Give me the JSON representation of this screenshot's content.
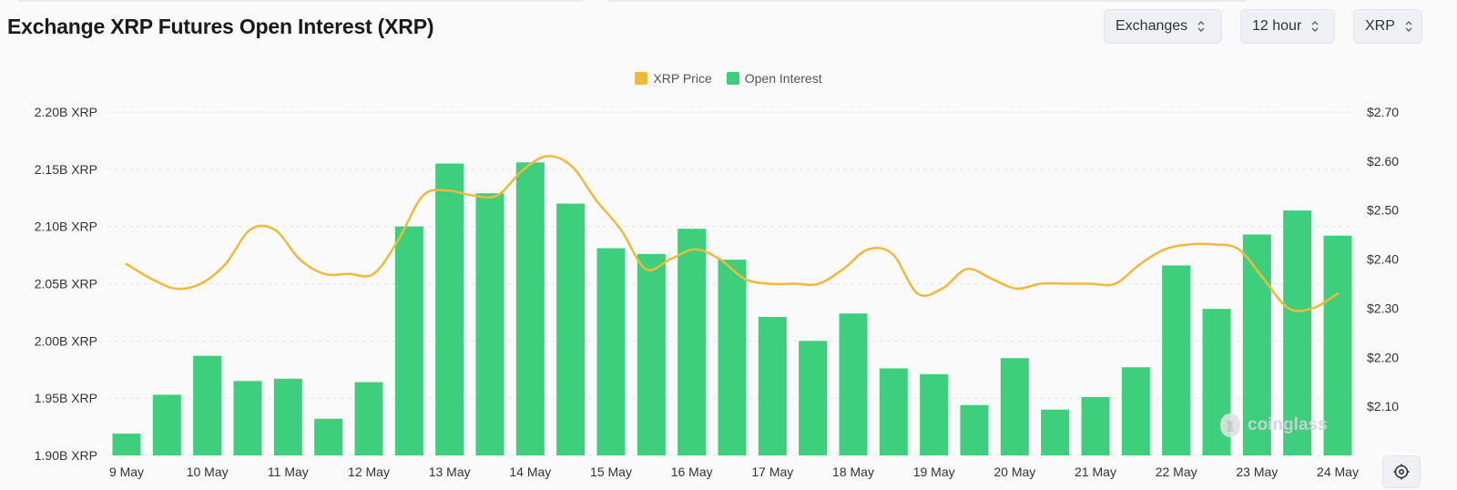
{
  "header": {
    "title": "Exchange XRP Futures Open Interest (XRP)",
    "controls": {
      "exchanges": "Exchanges",
      "interval": "12 hour",
      "coin": "XRP"
    }
  },
  "icons": {
    "chevron": "chevron-up-down-icon",
    "watermark": "coinglass-logo-icon",
    "settings": "gear-icon"
  },
  "watermark": "coinglass",
  "colors": {
    "price": "#f0b93a",
    "open_interest": "#3ecf7d",
    "grid": "#e6e6e6",
    "background": "#fafafa"
  },
  "chart_data": {
    "type": "bar",
    "title": "Exchange XRP Futures Open Interest (XRP)",
    "legend": [
      "XRP Price",
      "Open Interest"
    ],
    "legend_position": "top-center",
    "grid": true,
    "x_tick_labels": [
      "9 May",
      "10 May",
      "11 May",
      "12 May",
      "13 May",
      "14 May",
      "15 May",
      "16 May",
      "17 May",
      "18 May",
      "19 May",
      "20 May",
      "21 May",
      "22 May",
      "23 May",
      "24 May"
    ],
    "left_axis": {
      "ticks": [
        "1.90B XRP",
        "1.95B XRP",
        "2.00B XRP",
        "2.05B XRP",
        "2.10B XRP",
        "2.15B XRP",
        "2.20B XRP"
      ],
      "tick_values": [
        1.9,
        1.95,
        2.0,
        2.05,
        2.1,
        2.15,
        2.2
      ],
      "range": [
        1.9,
        2.2
      ],
      "unit": "B XRP"
    },
    "right_axis": {
      "ticks": [
        "$2.10",
        "$2.20",
        "$2.30",
        "$2.40",
        "$2.50",
        "$2.60",
        "$2.70"
      ],
      "tick_values": [
        2.1,
        2.2,
        2.3,
        2.4,
        2.5,
        2.6,
        2.7
      ],
      "range": [
        2.0,
        2.7
      ],
      "unit": "USD"
    },
    "series": [
      {
        "name": "Open Interest",
        "type": "bar",
        "axis": "left",
        "values": [
          1.919,
          1.953,
          1.987,
          1.965,
          1.967,
          1.932,
          1.964,
          2.1,
          2.155,
          2.129,
          2.156,
          2.12,
          2.081,
          2.076,
          2.098,
          2.071,
          2.021,
          2.0,
          2.024,
          1.976,
          1.971,
          1.944,
          1.985,
          1.94,
          1.951,
          1.977,
          2.066,
          2.028,
          2.093,
          2.114,
          2.092
        ]
      },
      {
        "name": "XRP Price",
        "type": "line",
        "axis": "right",
        "values": [
          2.39,
          2.36,
          2.34,
          2.35,
          2.39,
          2.46,
          2.46,
          2.4,
          2.37,
          2.37,
          2.37,
          2.44,
          2.53,
          2.54,
          2.53,
          2.53,
          2.58,
          2.61,
          2.59,
          2.52,
          2.46,
          2.38,
          2.4,
          2.42,
          2.4,
          2.36,
          2.35,
          2.35,
          2.35,
          2.38,
          2.42,
          2.41,
          2.33,
          2.34,
          2.38,
          2.36,
          2.34,
          2.35,
          2.35,
          2.35,
          2.35,
          2.39,
          2.42,
          2.43,
          2.43,
          2.42,
          2.36,
          2.3,
          2.3,
          2.33
        ]
      }
    ]
  }
}
